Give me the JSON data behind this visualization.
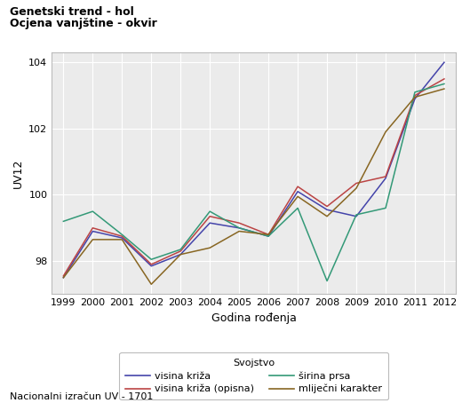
{
  "title_line1": "Genetski trend - hol",
  "title_line2": "Ocjena vanjštine - okvir",
  "xlabel": "Godina rođenja",
  "ylabel": "UV12",
  "footnote": "Nacionalni izračun UV - 1701",
  "legend_title": "Svojstvo",
  "years": [
    1999,
    2000,
    2001,
    2002,
    2003,
    2004,
    2005,
    2006,
    2007,
    2008,
    2009,
    2010,
    2011,
    2012
  ],
  "series": {
    "visina_kriza": {
      "label": "visina križa",
      "color": "#4444aa",
      "values": [
        97.5,
        98.9,
        98.7,
        97.85,
        98.2,
        99.15,
        99.0,
        98.75,
        100.1,
        99.55,
        99.35,
        100.5,
        102.9,
        104.0
      ]
    },
    "visina_kriza_opisna": {
      "label": "visina križa (opisna)",
      "color": "#bb4444",
      "values": [
        97.55,
        99.0,
        98.75,
        97.9,
        98.3,
        99.35,
        99.15,
        98.8,
        100.25,
        99.65,
        100.35,
        100.55,
        103.0,
        103.5
      ]
    },
    "sirina_prsa": {
      "label": "širina prsa",
      "color": "#339977",
      "values": [
        99.2,
        99.5,
        98.8,
        98.05,
        98.35,
        99.5,
        99.0,
        98.75,
        99.6,
        97.4,
        99.4,
        99.6,
        103.1,
        103.35
      ]
    },
    "mljecni_karakter": {
      "label": "mliječni karakter",
      "color": "#886622",
      "values": [
        97.5,
        98.65,
        98.65,
        97.3,
        98.2,
        98.4,
        98.9,
        98.8,
        99.95,
        99.35,
        100.2,
        101.9,
        102.95,
        103.2
      ]
    }
  },
  "ylim": [
    97.0,
    104.3
  ],
  "yticks": [
    98,
    100,
    102,
    104
  ],
  "xlim": [
    1998.6,
    2012.4
  ],
  "background_color": "#ffffff",
  "plot_bg_color": "#ebebeb",
  "grid_color": "#ffffff",
  "legend_box_color": "#ffffff",
  "legend_box_edge": "#aaaaaa",
  "title_fontsize": 9,
  "axis_label_fontsize": 9,
  "tick_fontsize": 8,
  "legend_fontsize": 8,
  "footnote_fontsize": 8
}
